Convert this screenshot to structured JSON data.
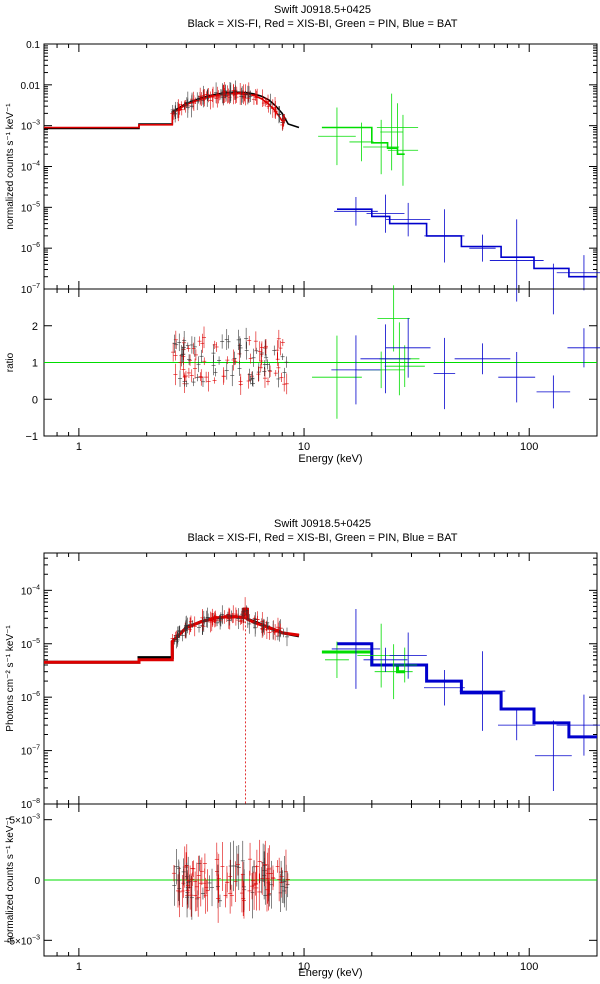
{
  "chart_data": [
    {
      "type": "line",
      "panel": "top-spectrum",
      "title": "Swift J0918.5+0425",
      "subtitle": "Black = XIS-FI, Red = XIS-BI, Green = PIN, Blue = BAT",
      "xlabel": "Energy (keV)",
      "ylabel": "normalized counts s⁻¹ keV⁻¹",
      "xscale": "log",
      "yscale": "log",
      "xlim": [
        0.7,
        200
      ],
      "ylim": [
        1e-07,
        0.1
      ],
      "xticks": [
        {
          "value": 1,
          "label": "1"
        },
        {
          "value": 10,
          "label": "10"
        },
        {
          "value": 100,
          "label": "100"
        }
      ],
      "yticks": [
        {
          "value": 0.1,
          "base": "0.1",
          "exp": ""
        },
        {
          "value": 0.01,
          "base": "0.01",
          "exp": ""
        },
        {
          "value": 0.001,
          "base": "10",
          "exp": "−3"
        },
        {
          "value": 0.0001,
          "base": "10",
          "exp": "−4"
        },
        {
          "value": 1e-05,
          "base": "10",
          "exp": "−5"
        },
        {
          "value": 1e-06,
          "base": "10",
          "exp": "−6"
        },
        {
          "value": 1e-07,
          "base": "10",
          "exp": "−7"
        }
      ],
      "series": [
        {
          "name": "XIS-FI model",
          "color": "#000000",
          "x": [
            0.7,
            1.85,
            1.85,
            2.6,
            2.6,
            3.0,
            3.5,
            4.0,
            4.5,
            5.0,
            5.5,
            6.0,
            6.5,
            7.0,
            7.5,
            8.0,
            8.5,
            9.5
          ],
          "y": [
            0.00085,
            0.00085,
            0.0011,
            0.0011,
            0.0022,
            0.0035,
            0.0048,
            0.0058,
            0.0064,
            0.0066,
            0.0065,
            0.006,
            0.0052,
            0.0042,
            0.003,
            0.002,
            0.0011,
            0.0009
          ]
        },
        {
          "name": "XIS-BI model",
          "color": "#dd0000",
          "x": [
            0.7,
            1.85,
            1.85,
            2.6,
            2.6,
            3.0,
            3.5,
            4.0,
            4.5,
            5.0,
            5.5,
            6.0,
            6.5,
            7.0,
            7.5,
            8.0
          ],
          "y": [
            0.0009,
            0.0009,
            0.00105,
            0.00105,
            0.002,
            0.0033,
            0.0045,
            0.0054,
            0.006,
            0.0062,
            0.006,
            0.0055,
            0.0045,
            0.0033,
            0.0022,
            0.0013
          ]
        },
        {
          "name": "PIN model",
          "color": "#00dd00",
          "x": [
            12,
            20,
            20,
            23.5,
            23.5,
            26,
            26,
            28
          ],
          "y": [
            0.0009,
            0.0009,
            0.00038,
            0.00038,
            0.00028,
            0.00028,
            0.0002,
            0.0002
          ]
        },
        {
          "name": "BAT model",
          "color": "#0000cc",
          "x": [
            14,
            20,
            20,
            24,
            24,
            35,
            35,
            50,
            50,
            75,
            75,
            105,
            105,
            150,
            150,
            200
          ],
          "y": [
            9e-06,
            9e-06,
            6e-06,
            6e-06,
            4e-06,
            4e-06,
            2e-06,
            2e-06,
            1.1e-06,
            1.1e-06,
            6e-07,
            6e-07,
            3.2e-07,
            3.2e-07,
            2e-07,
            2e-07
          ]
        }
      ],
      "points": [
        {
          "name": "PIN data",
          "color": "#00dd00",
          "x": [
            14,
            18,
            22,
            24.5,
            26,
            27.5
          ],
          "y": [
            0.00055,
            0.0004,
            0.0003,
            0.0007,
            0.0009,
            0.00025
          ]
        },
        {
          "name": "BAT data",
          "color": "#0000cc",
          "x": [
            17,
            23,
            29,
            42,
            62,
            88,
            128,
            175
          ],
          "y": [
            8e-06,
            7e-06,
            5e-06,
            2e-06,
            1e-06,
            5e-07,
            1e-07,
            2.5e-07
          ]
        }
      ]
    },
    {
      "type": "scatter",
      "panel": "top-ratio",
      "xlabel": "Energy (keV)",
      "ylabel": "ratio",
      "xscale": "log",
      "xlim": [
        0.7,
        200
      ],
      "ylim": [
        -1,
        3
      ],
      "xticks": [
        {
          "value": 1,
          "label": "1"
        },
        {
          "value": 10,
          "label": "10"
        },
        {
          "value": 100,
          "label": "100"
        }
      ],
      "yticks": [
        {
          "value": -1,
          "label": "−1"
        },
        {
          "value": 0,
          "label": "0"
        },
        {
          "value": 1,
          "label": "1"
        },
        {
          "value": 2,
          "label": "2"
        }
      ],
      "reference_line": 1,
      "points": [
        {
          "name": "PIN",
          "color": "#00dd00",
          "x": [
            14,
            22,
            25,
            26.5,
            28
          ],
          "y": [
            0.6,
            0.8,
            2.2,
            1.1,
            0.9
          ]
        },
        {
          "name": "BAT",
          "color": "#0000cc",
          "x": [
            17,
            23,
            29,
            42,
            62,
            88,
            128,
            175
          ],
          "y": [
            0.8,
            1.1,
            1.4,
            0.7,
            1.1,
            0.6,
            0.2,
            1.4
          ]
        }
      ]
    },
    {
      "type": "line",
      "panel": "bottom-spectrum",
      "title": "Swift J0918.5+0425",
      "subtitle": "Black = XIS-FI, Red = XIS-BI, Green = PIN, Blue = BAT",
      "xlabel": "Energy (keV)",
      "ylabel": "Photons cm⁻² s⁻¹ keV⁻¹",
      "xscale": "log",
      "yscale": "log",
      "xlim": [
        0.7,
        200
      ],
      "ylim": [
        1e-08,
        0.0005
      ],
      "xticks": [
        {
          "value": 1,
          "label": "1"
        },
        {
          "value": 10,
          "label": "10"
        },
        {
          "value": 100,
          "label": "100"
        }
      ],
      "yticks": [
        {
          "value": 0.0001,
          "base": "10",
          "exp": "−4"
        },
        {
          "value": 1e-05,
          "base": "10",
          "exp": "−5"
        },
        {
          "value": 1e-06,
          "base": "10",
          "exp": "−6"
        },
        {
          "value": 1e-07,
          "base": "10",
          "exp": "−7"
        },
        {
          "value": 1e-08,
          "base": "10",
          "exp": "−8"
        }
      ],
      "series": [
        {
          "name": "XIS-FI model",
          "color": "#000000",
          "x": [
            0.7,
            1.85,
            1.85,
            2.6,
            2.6,
            3.0,
            3.5,
            4.0,
            4.5,
            5.0,
            5.4,
            5.4,
            5.6,
            5.6,
            6.0,
            7.0,
            8.0,
            9.5
          ],
          "y": [
            4.5e-06,
            4.5e-06,
            5.5e-06,
            5.5e-06,
            1.1e-05,
            2e-05,
            2.6e-05,
            3e-05,
            3.2e-05,
            3.2e-05,
            3.1e-05,
            4.4e-05,
            4.4e-05,
            2.9e-05,
            2.6e-05,
            2e-05,
            1.6e-05,
            1.4e-05
          ]
        },
        {
          "name": "XIS-BI model",
          "color": "#dd0000",
          "x": [
            0.7,
            1.85,
            1.85,
            2.6,
            2.6,
            3.0,
            3.5,
            4.0,
            4.5,
            5.0,
            5.4,
            5.4,
            5.6,
            5.6,
            6.0,
            7.0,
            8.0,
            9.5
          ],
          "y": [
            4.5e-06,
            4.5e-06,
            5e-06,
            5e-06,
            1.1e-05,
            2e-05,
            2.6e-05,
            3e-05,
            3.2e-05,
            3.2e-05,
            3.1e-05,
            4.4e-05,
            4.4e-05,
            2.9e-05,
            2.5e-05,
            2e-05,
            1.6e-05,
            1.45e-05
          ]
        },
        {
          "name": "PIN model",
          "color": "#00dd00",
          "x": [
            12,
            20,
            20,
            26,
            26,
            28
          ],
          "y": [
            7e-06,
            7e-06,
            4e-06,
            4e-06,
            3e-06,
            3e-06
          ]
        },
        {
          "name": "BAT model",
          "color": "#0000cc",
          "x": [
            14,
            20,
            20,
            35,
            35,
            50,
            50,
            75,
            75,
            105,
            105,
            150,
            150,
            200
          ],
          "y": [
            1e-05,
            1e-05,
            4e-06,
            4e-06,
            2e-06,
            2e-06,
            1.2e-06,
            1.2e-06,
            6e-07,
            6e-07,
            3.3e-07,
            3.3e-07,
            1.8e-07,
            1.8e-07
          ]
        }
      ],
      "points": [
        {
          "name": "PIN data",
          "color": "#00dd00",
          "x": [
            14,
            22,
            25,
            28
          ],
          "y": [
            5e-06,
            6e-06,
            3e-06,
            4e-06
          ]
        },
        {
          "name": "BAT data",
          "color": "#0000cc",
          "x": [
            17,
            23,
            29,
            42,
            62,
            88,
            128,
            175
          ],
          "y": [
            8e-06,
            5e-06,
            6e-06,
            1.5e-06,
            1.3e-06,
            3e-07,
            8e-08,
            3e-07
          ]
        }
      ]
    },
    {
      "type": "scatter",
      "panel": "bottom-residual",
      "xlabel": "Energy (keV)",
      "ylabel": "normalized counts s⁻¹ keV⁻¹",
      "xscale": "log",
      "xlim": [
        0.7,
        200
      ],
      "ylim": [
        -0.0063,
        0.0063
      ],
      "xticks": [
        {
          "value": 1,
          "label": "1"
        },
        {
          "value": 10,
          "label": "10"
        },
        {
          "value": 100,
          "label": "100"
        }
      ],
      "yticks": [
        {
          "value": 0.005,
          "base": "5×10",
          "exp": "−3"
        },
        {
          "value": 0,
          "base": "0",
          "exp": ""
        },
        {
          "value": -0.005,
          "base": "−5×10",
          "exp": "−3"
        }
      ],
      "reference_line": 0
    }
  ]
}
